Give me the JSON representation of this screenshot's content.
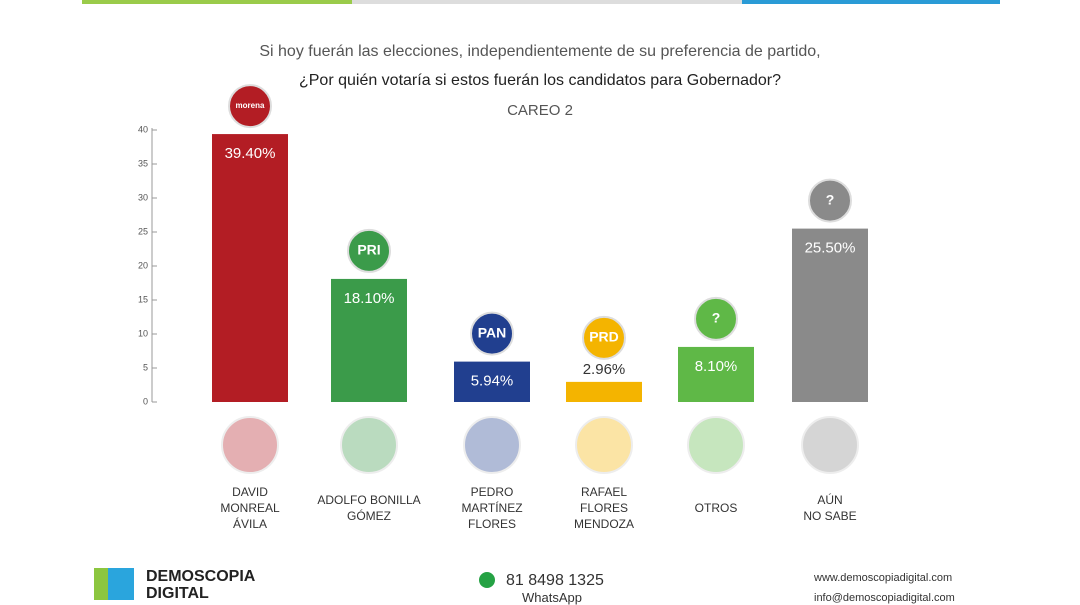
{
  "chart_data": {
    "type": "bar",
    "title": "Si hoy fuerán las elecciones, independientemente de su preferencia de partido,",
    "question": "¿Por quién votaría si estos fuerán los candidatos para Gobernador?",
    "subtitle": "CAREO 2",
    "categories": [
      "DAVID\nMONREAL\nÁVILA",
      "ADOLFO BONILLA\nGÓMEZ",
      "PEDRO\nMARTÍNEZ\nFLORES",
      "RAFAEL\nFLORES\nMENDOZA",
      "OTROS",
      "AÚN\nNO SABE"
    ],
    "logos": [
      "morena",
      "PRI",
      "PAN",
      "PRD",
      "?",
      "?"
    ],
    "values": [
      39.4,
      18.1,
      5.94,
      2.96,
      8.1,
      25.5
    ],
    "value_labels": [
      "39.40%",
      "18.10%",
      "5.94%",
      "2.96%",
      "8.10%",
      "25.50%"
    ],
    "colors": [
      "#b31d24",
      "#3b9b4a",
      "#213f8f",
      "#f4b400",
      "#5fb847",
      "#8a8a8a"
    ],
    "ylim": [
      0,
      40
    ],
    "yticks": [
      0,
      5,
      10,
      15,
      20,
      25,
      30,
      35,
      40
    ]
  },
  "footer": {
    "brand": "DEMOSCOPIA\nDIGITAL",
    "phone": "81 8498 1325",
    "phone_note": "WhatsApp",
    "web": "www.demoscopiadigital.com",
    "email": "info@demoscopiadigital.com"
  }
}
